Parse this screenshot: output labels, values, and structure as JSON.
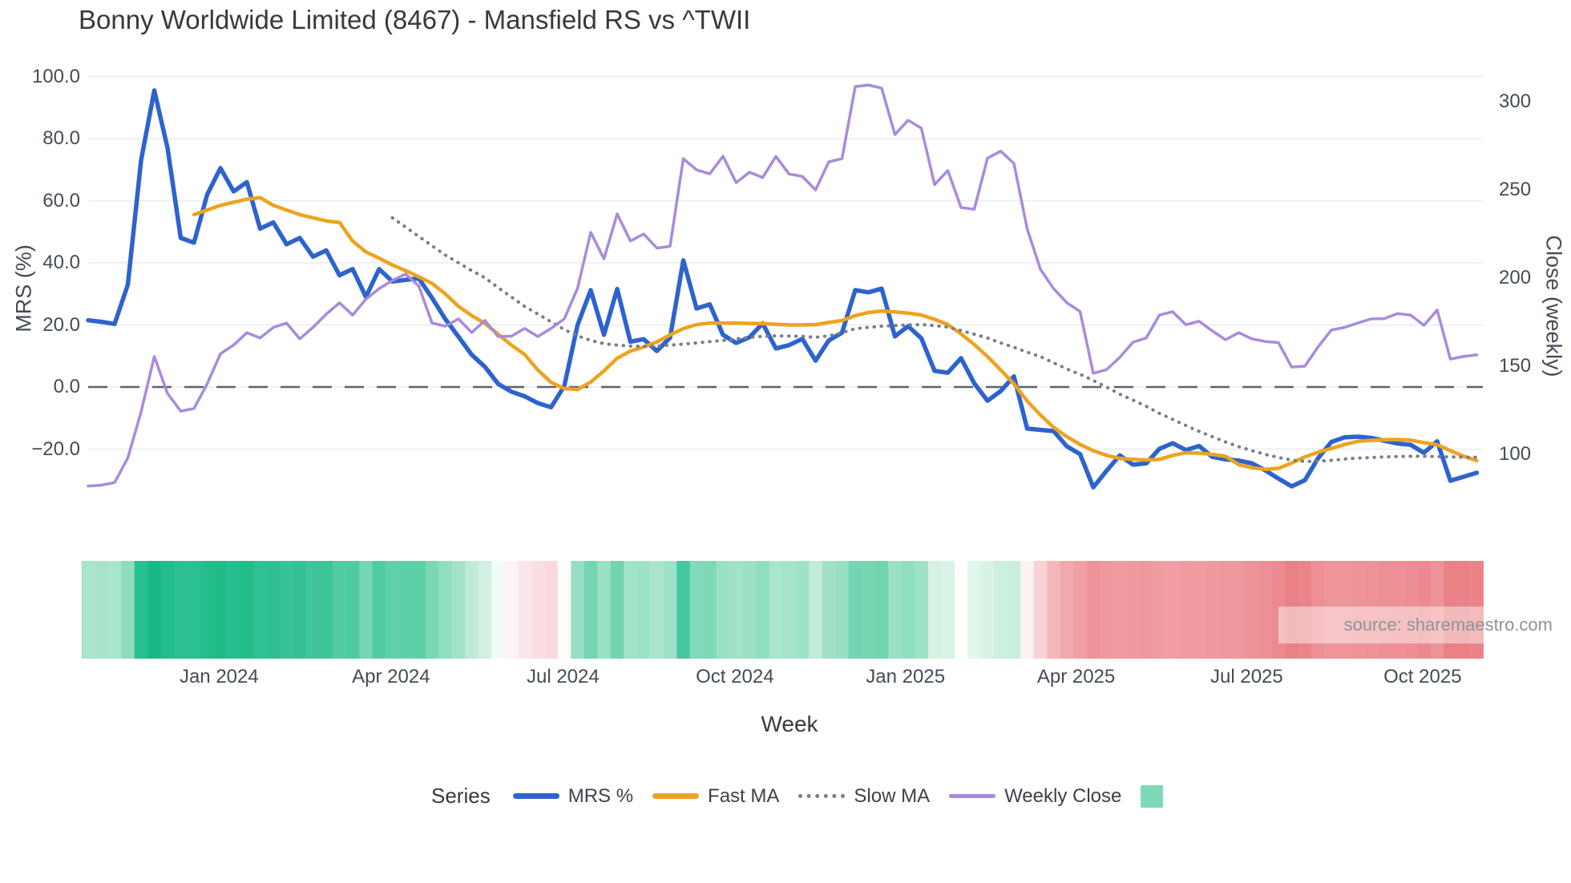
{
  "source_text": "source: sharemaestro.com",
  "chart_data": {
    "type": "line",
    "title": "Bonny Worldwide Limited (8467) - Mansfield RS vs ^TWII",
    "legend_title": "Series",
    "legend_position": "bottom-center",
    "grid": "horizontal-only",
    "background": "#ffffff",
    "x_axis": {
      "label": "Week",
      "tick_labels": [
        "Jan 2024",
        "Apr 2024",
        "Jul 2024",
        "Oct 2024",
        "Jan 2025",
        "Apr 2025",
        "Jul 2025",
        "Oct 2025"
      ],
      "tick_weeks": [
        9.9,
        22.9,
        35.9,
        48.9,
        61.8,
        74.7,
        87.6,
        100.9
      ],
      "total_weeks": 106
    },
    "y_left": {
      "label": "MRS (%)",
      "ticks": [
        100,
        80,
        60,
        40,
        20,
        0,
        -20
      ],
      "tick_labels": [
        "100.0",
        "80.0",
        "60.0",
        "40.0",
        "20.0",
        "0.0",
        "−20.0"
      ],
      "range": [
        -40,
        107
      ],
      "zero_line": "dashed"
    },
    "y_right": {
      "label": "Close (weekly)",
      "ticks": [
        300,
        250,
        200,
        150,
        100
      ],
      "tick_labels": [
        "300",
        "250",
        "200",
        "150",
        "100"
      ],
      "range": [
        63,
        330
      ]
    },
    "series": [
      {
        "name": "MRS %",
        "data_name": "mrs-line",
        "axis": "left",
        "color": "#2e63ce",
        "width": 5.5,
        "dash": "solid",
        "start_week": 0,
        "values": [
          21.5,
          21,
          20.3,
          33,
          73,
          95.5,
          77,
          48,
          46.5,
          62,
          70.5,
          63,
          66,
          51,
          53,
          46,
          48,
          42,
          44,
          36,
          38,
          29,
          38,
          34,
          34.5,
          35,
          28.7,
          21.9,
          16.2,
          10.4,
          6.5,
          1,
          -1.5,
          -3,
          -5.2,
          -6.5,
          0.3,
          19.9,
          31.2,
          16.8,
          31.6,
          14.6,
          15.4,
          11.6,
          15.9,
          40.8,
          25.3,
          26.6,
          16.8,
          14.2,
          16,
          20.5,
          12.4,
          13.5,
          15.5,
          8.5,
          15,
          17.5,
          31.2,
          30.5,
          31.7,
          16.3,
          19.6,
          15.7,
          5.2,
          4.6,
          9.3,
          1.2,
          -4.4,
          -1.3,
          3.4,
          -13.4,
          -13.8,
          -14.2,
          -19.1,
          -21.6,
          -32.3,
          -27,
          -22,
          -25,
          -24.6,
          -19.9,
          -18.1,
          -20.3,
          -19,
          -22.5,
          -23.3,
          -23.7,
          -24.6,
          -26.8,
          -29.5,
          -32,
          -30,
          -22.9,
          -17.7,
          -16.2,
          -16,
          -16.4,
          -17.3,
          -18.2,
          -18.6,
          -21.2,
          -17.5,
          -30.2,
          -28.9,
          -27.6
        ]
      },
      {
        "name": "Fast MA",
        "data_name": "fast-ma-line",
        "axis": "left",
        "color": "#eda320",
        "width": 4.5,
        "dash": "solid",
        "start_week": 8,
        "values": [
          55.5,
          57,
          58.5,
          59.5,
          60.5,
          61,
          58.5,
          57,
          55.5,
          54.5,
          53.5,
          53,
          47,
          43.5,
          41.5,
          39.3,
          37.5,
          35.5,
          33.4,
          30,
          26,
          23,
          20.5,
          17,
          13.5,
          10.5,
          5.5,
          1.5,
          -0.5,
          -0.8,
          1.6,
          5.2,
          9.3,
          11.6,
          12.9,
          14.5,
          16.8,
          18.8,
          20.1,
          20.6,
          20.6,
          20.6,
          20.5,
          20.4,
          20.2,
          20,
          20,
          20.1,
          20.8,
          21.4,
          23,
          24,
          24.5,
          24.2,
          23.8,
          23.2,
          21.8,
          20.1,
          17.1,
          13.7,
          9.8,
          5.5,
          1,
          -4.5,
          -9,
          -13,
          -16,
          -18.5,
          -20.5,
          -22,
          -23,
          -23.3,
          -23.5,
          -23.3,
          -22,
          -21.2,
          -21.3,
          -21.7,
          -22.3,
          -25,
          -26,
          -26.5,
          -26.2,
          -24.5,
          -22.5,
          -21,
          -19.8,
          -18.5,
          -17.5,
          -17.2,
          -17,
          -16.9,
          -17.1,
          -17.9,
          -18.6,
          -20.5,
          -22.3,
          -23.7
        ]
      },
      {
        "name": "Slow MA",
        "data_name": "slow-ma-line",
        "axis": "left",
        "color": "#787e89",
        "width": 4,
        "dash": "dot",
        "start_week": 23,
        "values": [
          54.5,
          51.5,
          48.5,
          45.5,
          42.5,
          40,
          37.5,
          35.2,
          32,
          29,
          26,
          23.5,
          21,
          18.5,
          16.5,
          15,
          14,
          13.5,
          13.2,
          13.1,
          13.2,
          13.5,
          13.8,
          14.2,
          14.6,
          15,
          15.5,
          16,
          16.3,
          16.5,
          16.4,
          16.3,
          16,
          16.5,
          17.5,
          18.8,
          19.2,
          19.6,
          19.8,
          20,
          20.1,
          19.8,
          19.3,
          18.2,
          17,
          15.8,
          14.2,
          12.8,
          11.2,
          9.8,
          7.8,
          5.8,
          4.1,
          2.1,
          0,
          -2.3,
          -4.2,
          -6.2,
          -8.5,
          -10.4,
          -12.4,
          -14.3,
          -16,
          -17.7,
          -19.2,
          -20.5,
          -21.7,
          -22.7,
          -23.5,
          -24,
          -23.9,
          -23.6,
          -23.2,
          -22.9,
          -22.7,
          -22.5,
          -22.4,
          -22.3,
          -22.3,
          -22.4,
          -22.5,
          -22.6,
          -22.6
        ]
      },
      {
        "name": "Weekly Close",
        "data_name": "weekly-close-line",
        "axis": "right",
        "color": "#a88bdc",
        "width": 3.5,
        "dash": "solid",
        "start_week": 0,
        "values": [
          82,
          82.5,
          84,
          98,
          124,
          155.5,
          134.5,
          124.5,
          126,
          140,
          157,
          162,
          169,
          166,
          172,
          174.5,
          165.5,
          172,
          179.5,
          185.9,
          179,
          188,
          194,
          198.6,
          202.3,
          195.5,
          174.5,
          172.7,
          176.8,
          169.1,
          175.9,
          166.8,
          167,
          171.4,
          166.8,
          171.4,
          176.8,
          194.1,
          225.9,
          210.9,
          236.4,
          221,
          225,
          217,
          218,
          267.7,
          261.4,
          259.1,
          269.1,
          254.1,
          260,
          257,
          269,
          259,
          257.7,
          250,
          265.9,
          267.7,
          308.6,
          309.5,
          307.7,
          281.4,
          289.5,
          285,
          253,
          261,
          240,
          239,
          268,
          272,
          265,
          228,
          205,
          194,
          186,
          181,
          146,
          148,
          155,
          163.6,
          166,
          179,
          180.9,
          173.5,
          175.5,
          170,
          165,
          169,
          165.5,
          164,
          163.4,
          149.5,
          150,
          161,
          170.5,
          172,
          174.5,
          176.8,
          177,
          179.8,
          179,
          173.2,
          181.8,
          154,
          155.5,
          156.4
        ]
      }
    ],
    "heatmap": {
      "description": "weekly MRS strength strip, green=positive, red=negative, white gap cell",
      "legend_swatch_color": "#80d9b6",
      "colors": [
        "#a9e5ca",
        "#a7e4c8",
        "#a9e5ca",
        "#8eddbd",
        "#27bf8f",
        "#16b987",
        "#22bd8c",
        "#2bbf91",
        "#2cbf92",
        "#24bd8d",
        "#1fbc8a",
        "#26be8f",
        "#23bd8c",
        "#2fc094",
        "#2dbf93",
        "#38c298",
        "#34c196",
        "#40c49c",
        "#3dc49b",
        "#53cca3",
        "#4ecba1",
        "#76d6b3",
        "#52cca3",
        "#5fd0a8",
        "#5dcfa7",
        "#5bcfa7",
        "#7bd8b5",
        "#92dec0",
        "#a4e3c9",
        "#beead7",
        "#d1f0e1",
        "#f2fbf7",
        "#fdf3f4",
        "#fbe7e9",
        "#fadfe2",
        "#f9d9dc",
        "#fefefe",
        "#96dfc2",
        "#73d5b1",
        "#99e1c4",
        "#72d5b0",
        "#a1e3c8",
        "#9ee2c6",
        "#abe6cc",
        "#9de2c6",
        "#46c79f",
        "#81dab8",
        "#7dd9b6",
        "#99e1c4",
        "#a2e3c8",
        "#9ce1c5",
        "#8edebf",
        "#a8e5ca",
        "#a5e4c9",
        "#9fe2c7",
        "#c2ecd9",
        "#a0e2c7",
        "#98e0c3",
        "#73d5b1",
        "#75d6b2",
        "#71d5b0",
        "#9ae1c4",
        "#8fdec0",
        "#9de2c6",
        "#d7f2e5",
        "#d9f3e7",
        null,
        "#e2f6ec",
        "#d7f3e5",
        "#ccefdf",
        "#c8eedd",
        "#fdf1f2",
        "#f8d3d6",
        "#f4b7bb",
        "#f2a8ac",
        "#f0a0a5",
        "#ee9398",
        "#ef989d",
        "#f09ca1",
        "#ef9a9f",
        "#ef999e",
        "#f09da2",
        "#f09ea3",
        "#f09ca1",
        "#f09da2",
        "#ef9a9f",
        "#ef999e",
        "#ef989d",
        "#ee9499",
        "#ed9095",
        "#ec8a8f",
        "#ea8186",
        "#eb8489",
        "#ed8f94",
        "#ee9599",
        "#ee9599",
        "#ee9398",
        "#ee9297",
        "#ed9095",
        "#ed8f94",
        "#ed8e93",
        "#ec8a8f",
        "#ee9398",
        "#ea8186",
        "#ea8287",
        "#eb8388"
      ]
    }
  }
}
